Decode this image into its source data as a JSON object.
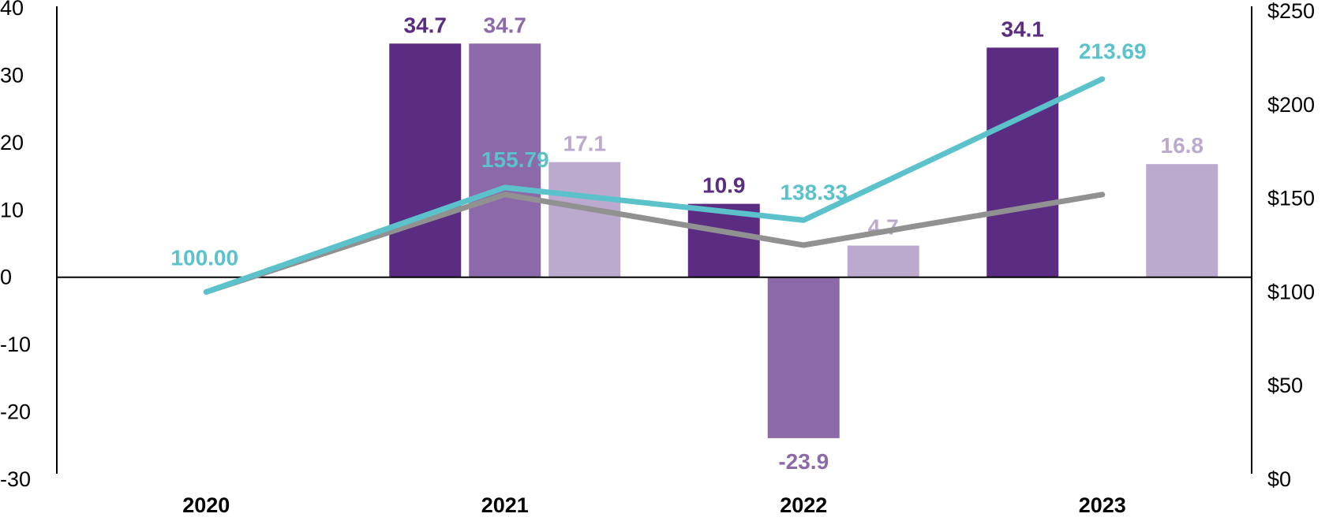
{
  "chart_data": {
    "type": "bar",
    "categories": [
      "2020",
      "2021",
      "2022",
      "2023"
    ],
    "bar_series": [
      {
        "values": [
          null,
          34.7,
          10.9,
          34.1
        ],
        "labels": [
          "",
          "34.7",
          "10.9",
          "34.1"
        ],
        "color": "#5a2d82"
      },
      {
        "values": [
          null,
          34.7,
          -23.9,
          null
        ],
        "labels": [
          "",
          "34.7",
          "-23.9",
          ""
        ],
        "color": "#8c6aaa"
      },
      {
        "values": [
          null,
          17.1,
          4.7,
          16.8
        ],
        "labels": [
          "",
          "17.1",
          "4.7",
          "16.8"
        ],
        "color": "#bbaacd"
      }
    ],
    "line_series": [
      {
        "values": [
          100.0,
          155.79,
          138.33,
          213.69
        ],
        "labels": [
          "100.00",
          "155.79",
          "138.33",
          "213.69"
        ],
        "color": "#5bc2cc"
      },
      {
        "values": [
          100.0,
          152.0,
          125.0,
          152.0
        ],
        "labels": [],
        "color": "#919191"
      }
    ],
    "y_left": {
      "ylim": [
        -30,
        40
      ],
      "ticks": [
        "40",
        "30",
        "20",
        "10",
        "0",
        "-10",
        "-20",
        "-30"
      ],
      "tick_values": [
        40,
        30,
        20,
        10,
        0,
        -10,
        -20,
        -30
      ]
    },
    "y_right": {
      "ylim": [
        0,
        250
      ],
      "ticks": [
        "$250",
        "$200",
        "$150",
        "$100",
        "$50",
        "$0"
      ],
      "tick_values": [
        250,
        200,
        150,
        100,
        50,
        0
      ]
    },
    "grid": false,
    "legend": "none"
  }
}
